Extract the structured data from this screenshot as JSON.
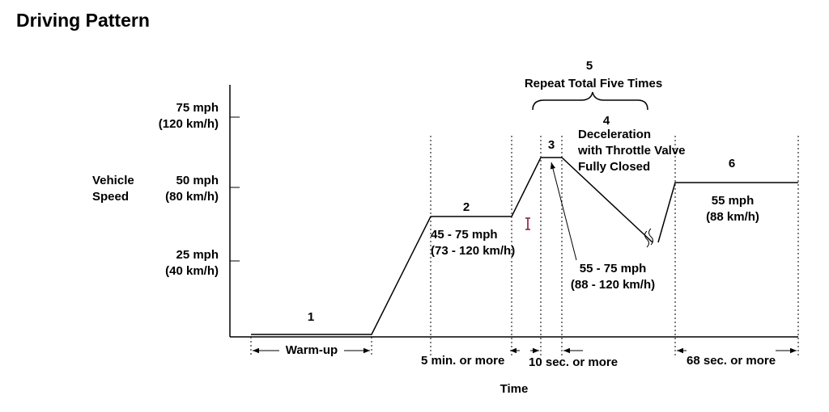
{
  "title": "Driving Pattern",
  "y_axis": {
    "label_line1": "Vehicle",
    "label_line2": "Speed",
    "ticks": [
      {
        "mph": "75 mph",
        "kmh": "(120 km/h)"
      },
      {
        "mph": "50 mph",
        "kmh": "(80 km/h)"
      },
      {
        "mph": "25 mph",
        "kmh": "(40 km/h)"
      }
    ]
  },
  "x_axis": {
    "label": "Time"
  },
  "phases": {
    "p1": {
      "number": "1"
    },
    "p2": {
      "number": "2",
      "line1": "45 - 75 mph",
      "line2": "(73 - 120 km/h)"
    },
    "p3": {
      "number": "3",
      "line1": "55 - 75 mph",
      "line2": "(88 - 120 km/h)"
    },
    "p4": {
      "number": "4",
      "line1": "Deceleration",
      "line2": "with Throttle Valve",
      "line3": "Fully Closed"
    },
    "p5": {
      "number": "5",
      "text": "Repeat Total Five Times"
    },
    "p6": {
      "number": "6",
      "line1": "55 mph",
      "line2": "(88 km/h)"
    }
  },
  "durations": {
    "warmup": "Warm-up",
    "d2": "5 min. or more",
    "d3": "10 sec. or more",
    "d6": "68 sec. or more"
  },
  "colors": {
    "line": "#000000",
    "cursor": "#8b1a3a"
  }
}
